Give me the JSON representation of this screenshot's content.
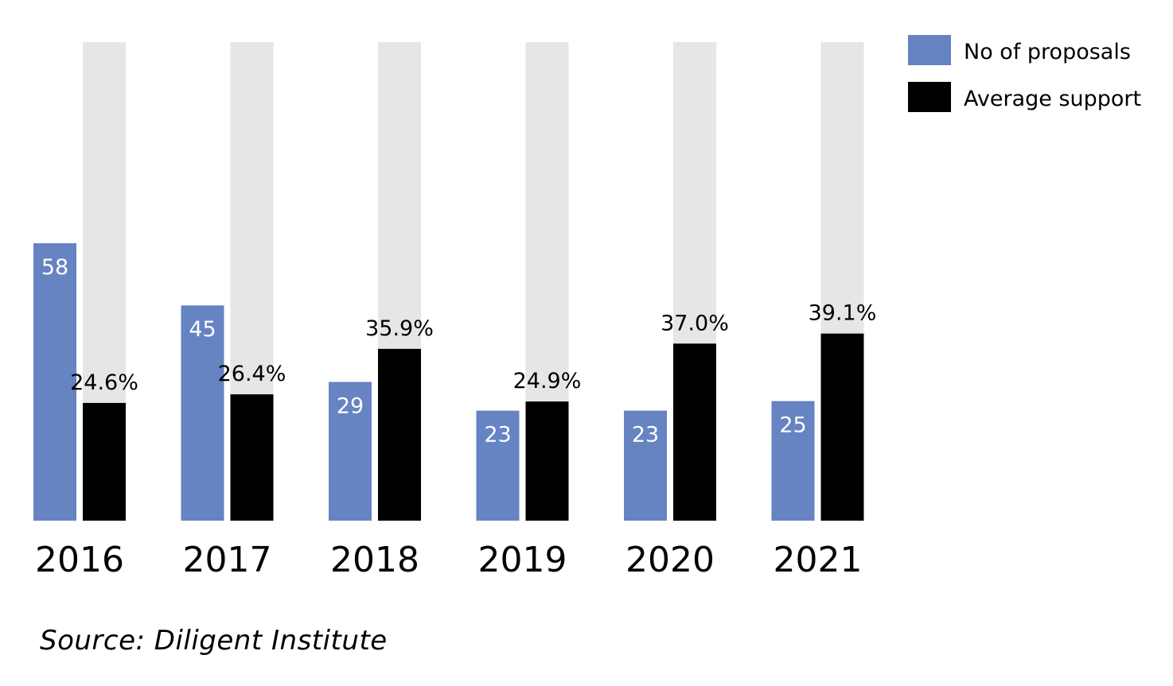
{
  "chart_data": {
    "type": "bar",
    "categories": [
      "2016",
      "2017",
      "2018",
      "2019",
      "2020",
      "2021"
    ],
    "series": [
      {
        "name": "No of proposals",
        "values": [
          58,
          45,
          29,
          23,
          23,
          25
        ],
        "value_labels": [
          "58",
          "45",
          "29",
          "23",
          "23",
          "25"
        ],
        "color": "#6683c2"
      },
      {
        "name": "Average support",
        "values": [
          24.6,
          26.4,
          35.9,
          24.9,
          37.0,
          39.1
        ],
        "value_labels": [
          "24.6%",
          "26.4%",
          "35.9%",
          "24.9%",
          "37.0%",
          "39.1%"
        ],
        "color": "#000000",
        "background_max": 100,
        "background_color": "#e6e6e6"
      }
    ],
    "legend_position": "top-right",
    "grid": false
  },
  "source": "Source: Diligent Institute"
}
